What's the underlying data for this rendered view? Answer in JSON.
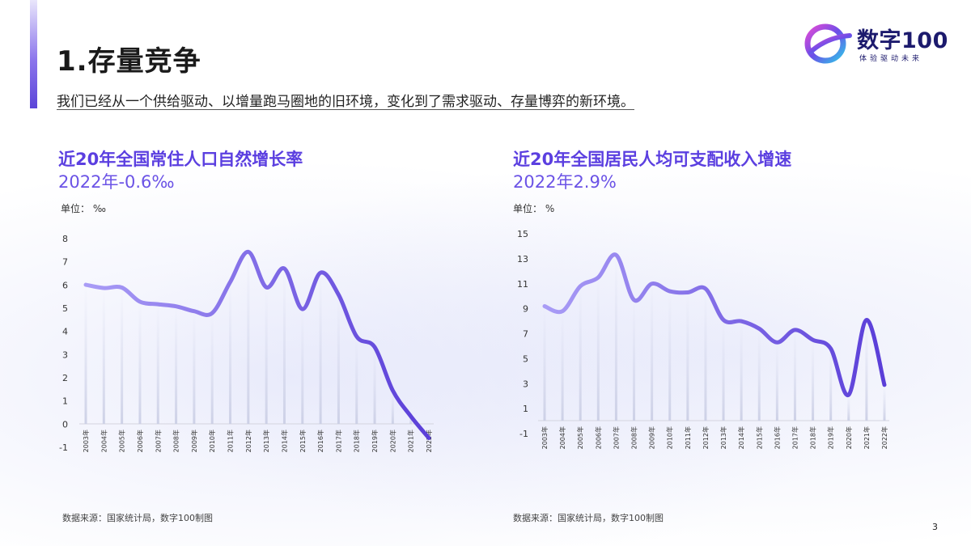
{
  "header": {
    "title": "1.存量竞争",
    "subtitle": "我们已经从一个供给驱动、以增量跑马圈地的旧环境，变化到了需求驱动、存量博弈的新环境。"
  },
  "logo": {
    "name": "数字100",
    "tagline": "体验驱动未来"
  },
  "colors": {
    "accent": "#5b3fe0",
    "line_start": "#a99cf6",
    "line_end": "#5a3ed8"
  },
  "page_number": "3",
  "charts": [
    {
      "title": "近20年全国常住人口自然增长率",
      "highlight": "2022年-0.6‰",
      "unit": "单位：  ‰",
      "source": "数据来源：国家统计局，数字100制图"
    },
    {
      "title": "近20年全国居民人均可支配收入增速",
      "highlight": "2022年2.9%",
      "unit": "单位：  %",
      "source": "数据来源：国家统计局，数字100制图"
    }
  ],
  "chart_data": [
    {
      "type": "line",
      "title": "近20年全国常住人口自然增长率",
      "ylabel": "‰",
      "x": [
        "2003年",
        "2004年",
        "2005年",
        "2006年",
        "2007年",
        "2008年",
        "2009年",
        "2010年",
        "2011年",
        "2012年",
        "2013年",
        "2014年",
        "2015年",
        "2016年",
        "2017年",
        "2018年",
        "2019年",
        "2020年",
        "2021年",
        "2022年"
      ],
      "y_ticks": [
        -1,
        0,
        1,
        2,
        3,
        4,
        5,
        6,
        7,
        8
      ],
      "ylim": [
        -1,
        8
      ],
      "series": [
        {
          "values": [
            6.01,
            5.87,
            5.89,
            5.28,
            5.17,
            5.08,
            4.87,
            4.79,
            6.13,
            7.43,
            5.9,
            6.71,
            4.96,
            6.53,
            5.58,
            3.78,
            3.32,
            1.45,
            0.34,
            -0.6
          ]
        }
      ],
      "grid": false
    },
    {
      "type": "line",
      "title": "近20年全国居民人均可支配收入增速",
      "ylabel": "%",
      "x": [
        "2003年",
        "2004年",
        "2005年",
        "2006年",
        "2007年",
        "2008年",
        "2009年",
        "2010年",
        "2011年",
        "2012年",
        "2013年",
        "2014年",
        "2015年",
        "2016年",
        "2017年",
        "2018年",
        "2019年",
        "2020年",
        "2021年",
        "2022年"
      ],
      "y_ticks": [
        -1,
        1,
        3,
        5,
        7,
        9,
        11,
        13,
        15
      ],
      "ylim": [
        -1,
        15
      ],
      "series": [
        {
          "values": [
            9.2,
            8.8,
            10.8,
            11.5,
            13.3,
            9.7,
            11.0,
            10.4,
            10.3,
            10.6,
            8.1,
            8.0,
            7.4,
            6.3,
            7.3,
            6.5,
            5.8,
            2.1,
            8.1,
            2.9
          ]
        }
      ],
      "grid": false
    }
  ]
}
